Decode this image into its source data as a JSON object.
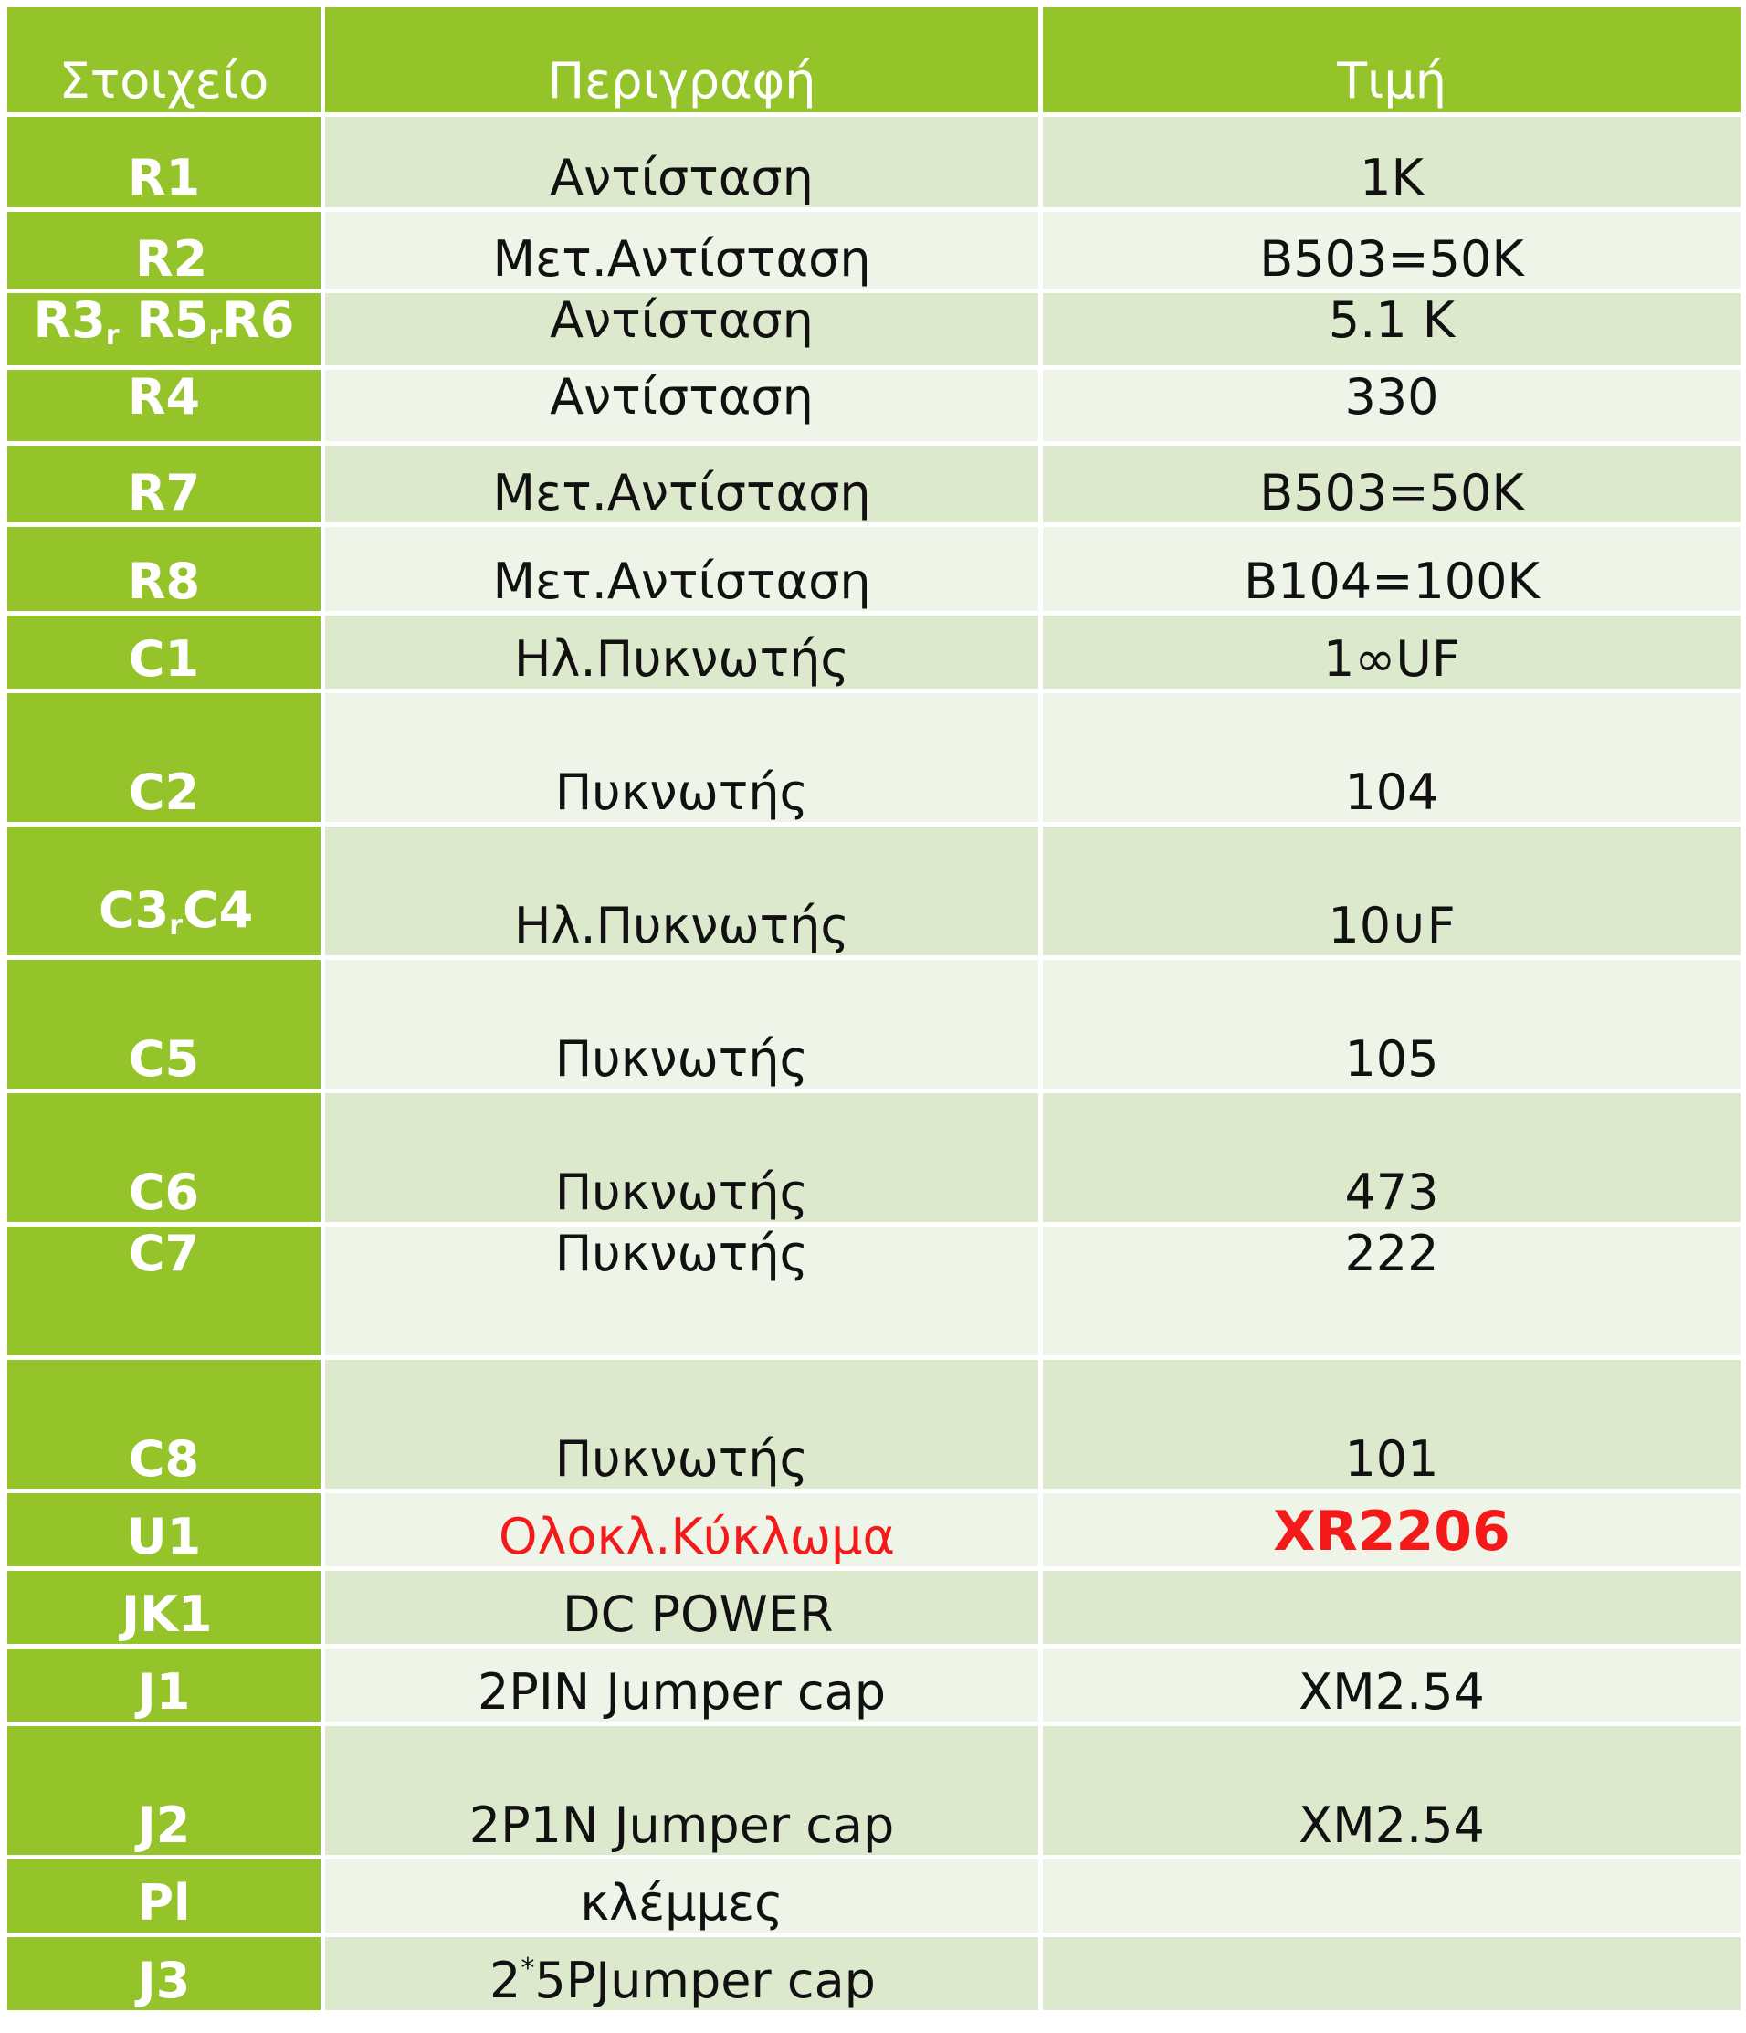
{
  "header": {
    "col1": "Στοιχείο",
    "col2": "Περιγραφή",
    "col3": "Τιμή"
  },
  "rows": [
    {
      "key": "R1",
      "desc": "Αντίσταση",
      "value": "1K"
    },
    {
      "key": "R2",
      "desc": "Μετ.Αντίσταση",
      "value": "B503=50K"
    },
    {
      "key": "R3",
      "key_sub1": "r",
      "key_mid": " R5",
      "key_sub2": "r",
      "key_end": "R6",
      "desc": "Αντίσταση",
      "value": "5.1 K"
    },
    {
      "key": "R4",
      "desc": "Αντίσταση",
      "value": "330"
    },
    {
      "key": "R7",
      "desc": "Μετ.Αντίσταση",
      "value": "B503=50K"
    },
    {
      "key": "R8",
      "desc": "Μετ.Αντίσταση",
      "value": "B104=100K"
    },
    {
      "key": "C1",
      "desc": "Ηλ.Πυκνωτής",
      "value": "1∞UF"
    },
    {
      "key": "C2",
      "desc": "Πυκνωτής",
      "value": "104"
    },
    {
      "key": "C3",
      "key_sub1": "r",
      "key_end": "C4",
      "desc": "Ηλ.Πυκνωτής",
      "value": "10∪F"
    },
    {
      "key": "C5",
      "desc": "Πυκνωτής",
      "value": "105"
    },
    {
      "key": "C6",
      "desc": "Πυκνωτής",
      "value": "473"
    },
    {
      "key": "C7",
      "desc": "Πυκνωτής",
      "value": "222"
    },
    {
      "key": "C8",
      "desc": "Πυκνωτής",
      "value": "101"
    },
    {
      "key": "U1",
      "desc": "Ολοκλ.Κύκλωμα",
      "value": "XR2206"
    },
    {
      "key": "JK1",
      "desc": "DC POWER",
      "value": ""
    },
    {
      "key": "J1",
      "desc": "2PIN Jumper cap",
      "value": "XM2.54"
    },
    {
      "key": "J2",
      "desc": "2P1N Jumper cap",
      "value": "XM2.54"
    },
    {
      "key": "Pl",
      "desc": "κλέμμες",
      "value": ""
    },
    {
      "key": "J3",
      "desc": "2",
      "desc_sup": "*",
      "desc_end": "5PJumper cap",
      "value": ""
    }
  ],
  "colors": {
    "header_green": "#94c32a",
    "row_light": "#eef4e7",
    "row_mid": "#dde9cc",
    "highlight_red": "#f41a1a"
  }
}
